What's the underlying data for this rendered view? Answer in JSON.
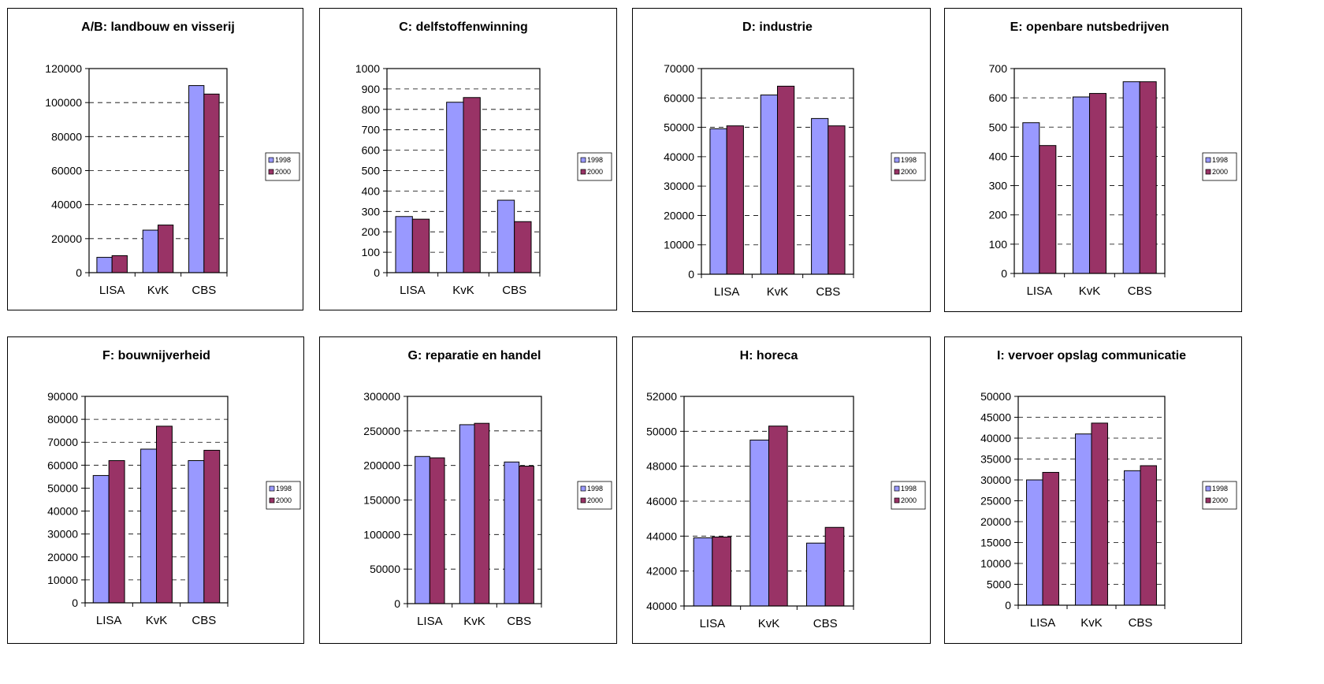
{
  "chart_data": [
    {
      "type": "bar",
      "title": "A/B: landbouw en visserij",
      "categories": [
        "LISA",
        "KvK",
        "CBS"
      ],
      "series": [
        {
          "name": "1998",
          "values": [
            9000,
            25000,
            110000
          ]
        },
        {
          "name": "2000",
          "values": [
            10000,
            28000,
            105000
          ]
        }
      ],
      "ylim": [
        0,
        120000
      ],
      "yticks": [
        "0",
        "20000",
        "40000",
        "60000",
        "80000",
        "100000",
        "120000"
      ],
      "grid": true,
      "legend": "right"
    },
    {
      "type": "bar",
      "title": "C: delfstoffenwinning",
      "categories": [
        "LISA",
        "KvK",
        "CBS"
      ],
      "series": [
        {
          "name": "1998",
          "values": [
            275,
            835,
            355
          ]
        },
        {
          "name": "2000",
          "values": [
            262,
            858,
            250
          ]
        }
      ],
      "ylim": [
        0,
        1000
      ],
      "yticks": [
        "0",
        "100",
        "200",
        "300",
        "400",
        "500",
        "600",
        "700",
        "800",
        "900",
        "1000"
      ],
      "grid": true,
      "legend": "right"
    },
    {
      "type": "bar",
      "title": "D: industrie",
      "categories": [
        "LISA",
        "KvK",
        "CBS"
      ],
      "series": [
        {
          "name": "1998",
          "values": [
            49500,
            61000,
            53000
          ]
        },
        {
          "name": "2000",
          "values": [
            50500,
            64000,
            50500
          ]
        }
      ],
      "ylim": [
        0,
        70000
      ],
      "yticks": [
        "0",
        "10000",
        "20000",
        "30000",
        "40000",
        "50000",
        "60000",
        "70000"
      ],
      "grid": true,
      "legend": "right"
    },
    {
      "type": "bar",
      "title": "E: openbare nutsbedrijven",
      "categories": [
        "LISA",
        "KvK",
        "CBS"
      ],
      "series": [
        {
          "name": "1998",
          "values": [
            515,
            603,
            655
          ]
        },
        {
          "name": "2000",
          "values": [
            437,
            615,
            655
          ]
        }
      ],
      "ylim": [
        0,
        700
      ],
      "yticks": [
        "0",
        "100",
        "200",
        "300",
        "400",
        "500",
        "600",
        "700"
      ],
      "grid": true,
      "legend": "right"
    },
    {
      "type": "bar",
      "title": "F: bouwnijverheid",
      "categories": [
        "LISA",
        "KvK",
        "CBS"
      ],
      "series": [
        {
          "name": "1998",
          "values": [
            55500,
            67000,
            62000
          ]
        },
        {
          "name": "2000",
          "values": [
            62000,
            77000,
            66500
          ]
        }
      ],
      "ylim": [
        0,
        90000
      ],
      "yticks": [
        "0",
        "10000",
        "20000",
        "30000",
        "40000",
        "50000",
        "60000",
        "70000",
        "80000",
        "90000"
      ],
      "grid": true,
      "legend": "right"
    },
    {
      "type": "bar",
      "title": "G: reparatie en handel",
      "categories": [
        "LISA",
        "KvK",
        "CBS"
      ],
      "series": [
        {
          "name": "1998",
          "values": [
            213000,
            259000,
            205000
          ]
        },
        {
          "name": "2000",
          "values": [
            211000,
            261000,
            199000
          ]
        }
      ],
      "ylim": [
        0,
        300000
      ],
      "yticks": [
        "0",
        "50000",
        "100000",
        "150000",
        "200000",
        "250000",
        "300000"
      ],
      "grid": true,
      "legend": "right"
    },
    {
      "type": "bar",
      "title": "H: horeca",
      "categories": [
        "LISA",
        "KvK",
        "CBS"
      ],
      "series": [
        {
          "name": "1998",
          "values": [
            43900,
            49500,
            43600
          ]
        },
        {
          "name": "2000",
          "values": [
            43950,
            50300,
            44500
          ]
        }
      ],
      "ylim": [
        40000,
        52000
      ],
      "yticks": [
        "40000",
        "42000",
        "44000",
        "46000",
        "48000",
        "50000",
        "52000"
      ],
      "grid": true,
      "legend": "right"
    },
    {
      "type": "bar",
      "title": "I: vervoer opslag communicatie",
      "categories": [
        "LISA",
        "KvK",
        "CBS"
      ],
      "series": [
        {
          "name": "1998",
          "values": [
            30000,
            41000,
            32200
          ]
        },
        {
          "name": "2000",
          "values": [
            31800,
            43600,
            33400
          ]
        }
      ],
      "ylim": [
        0,
        50000
      ],
      "yticks": [
        "0",
        "5000",
        "10000",
        "15000",
        "20000",
        "25000",
        "30000",
        "35000",
        "40000",
        "45000",
        "50000"
      ],
      "grid": true,
      "legend": "right"
    }
  ],
  "colors": {
    "series_1998": "#9999ff",
    "series_2000": "#993366"
  }
}
